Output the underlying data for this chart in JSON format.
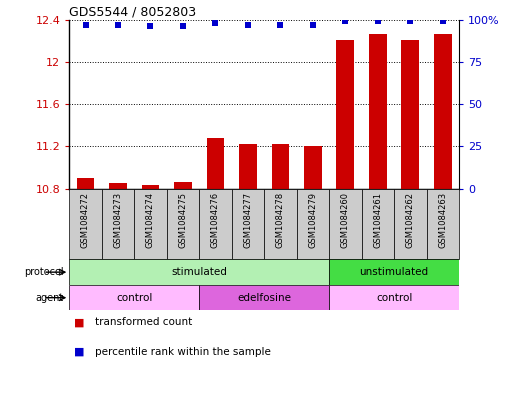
{
  "title": "GDS5544 / 8052803",
  "samples": [
    "GSM1084272",
    "GSM1084273",
    "GSM1084274",
    "GSM1084275",
    "GSM1084276",
    "GSM1084277",
    "GSM1084278",
    "GSM1084279",
    "GSM1084260",
    "GSM1084261",
    "GSM1084262",
    "GSM1084263"
  ],
  "bar_values": [
    10.9,
    10.85,
    10.83,
    10.86,
    11.28,
    11.22,
    11.22,
    11.2,
    12.21,
    12.26,
    12.21,
    12.26
  ],
  "dot_values": [
    97,
    97,
    96,
    96,
    98,
    97,
    97,
    97,
    99,
    99,
    99,
    99
  ],
  "bar_color": "#cc0000",
  "dot_color": "#0000cc",
  "ylim_left": [
    10.8,
    12.4
  ],
  "ylim_right": [
    0,
    100
  ],
  "yticks_left": [
    10.8,
    11.2,
    11.6,
    12.0,
    12.4
  ],
  "ytick_labels_left": [
    "10.8",
    "11.2",
    "11.6",
    "12",
    "12.4"
  ],
  "yticks_right": [
    0,
    25,
    50,
    75,
    100
  ],
  "ytick_labels_right": [
    "0",
    "25",
    "50",
    "75",
    "100%"
  ],
  "protocol_groups": [
    {
      "label": "stimulated",
      "start": 0,
      "end": 8,
      "color": "#b3f0b3"
    },
    {
      "label": "unstimulated",
      "start": 8,
      "end": 12,
      "color": "#44dd44"
    }
  ],
  "agent_groups": [
    {
      "label": "control",
      "start": 0,
      "end": 4,
      "color": "#ffbbff"
    },
    {
      "label": "edelfosine",
      "start": 4,
      "end": 8,
      "color": "#dd66dd"
    },
    {
      "label": "control",
      "start": 8,
      "end": 12,
      "color": "#ffbbff"
    }
  ],
  "legend_items": [
    {
      "label": "transformed count",
      "color": "#cc0000"
    },
    {
      "label": "percentile rank within the sample",
      "color": "#0000cc"
    }
  ],
  "bar_width": 0.55,
  "bar_baseline": 10.8,
  "grid_linestyle": ":",
  "grid_color": "#000000",
  "sample_box_color": "#cccccc"
}
